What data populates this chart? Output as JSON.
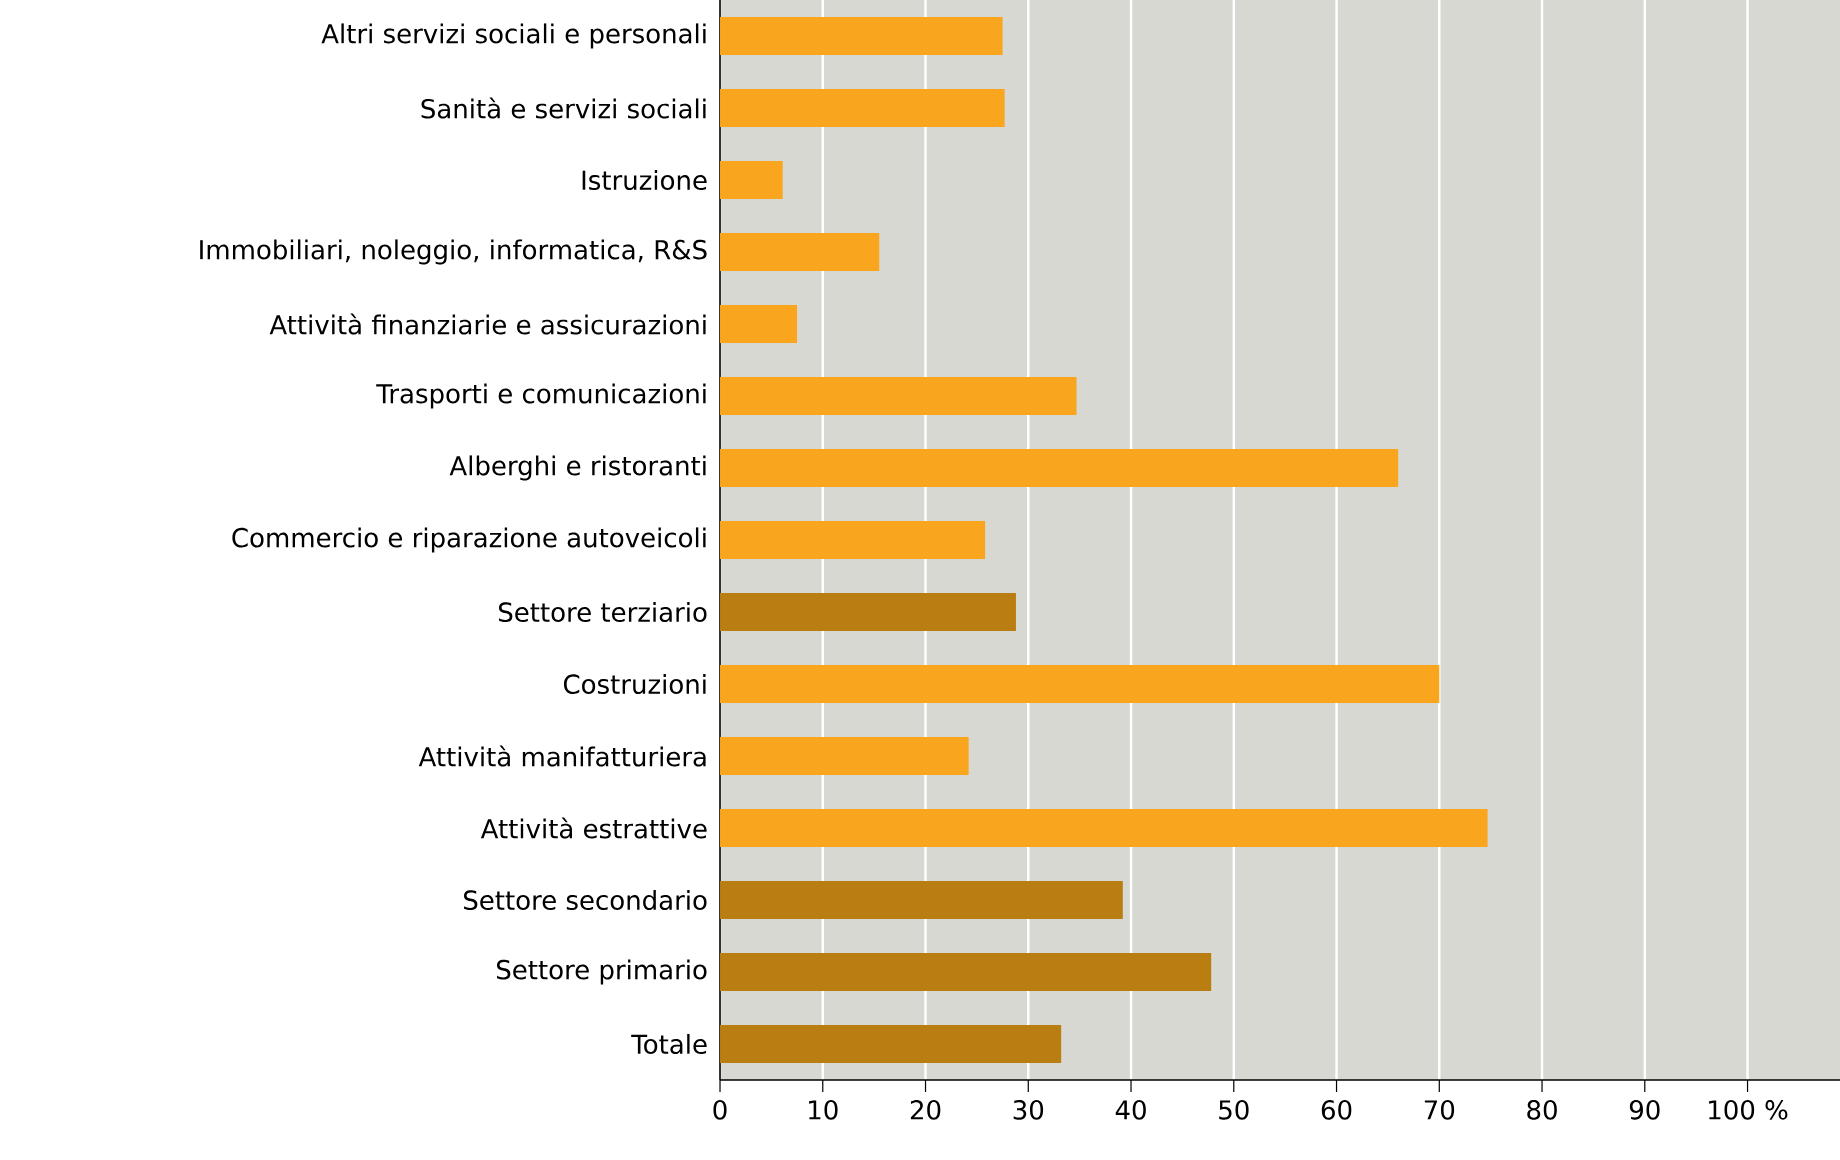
{
  "chart_data": {
    "type": "bar",
    "orientation": "horizontal",
    "categories": [
      "Altri servizi sociali e personali",
      "Sanità e servizi sociali",
      "Istruzione",
      "Immobiliari, noleggio, informatica, R&S",
      "Attività finanziarie e assicurazioni",
      "Trasporti e comunicazioni",
      "Alberghi e ristoranti",
      "Commercio e riparazione autoveicoli",
      "Settore terziario",
      "Costruzioni",
      "Attività manifatturiera",
      "Attività estrattive",
      "Settore secondario",
      "Settore primario",
      "Totale"
    ],
    "values": [
      27.5,
      27.7,
      6.1,
      15.5,
      7.5,
      34.7,
      66.0,
      25.8,
      28.8,
      70.0,
      24.2,
      74.7,
      39.2,
      47.8,
      33.2
    ],
    "colors": [
      "#f9a61e",
      "#f9a61e",
      "#f9a61e",
      "#f9a61e",
      "#f9a61e",
      "#f9a61e",
      "#f9a61e",
      "#f9a61e",
      "#b97d11",
      "#f9a61e",
      "#f9a61e",
      "#f9a61e",
      "#b97d11",
      "#b97d11",
      "#b97d11"
    ],
    "xlim": [
      0,
      109
    ],
    "xticks": [
      0,
      10,
      20,
      30,
      40,
      50,
      60,
      70,
      80,
      90,
      {
        "value": 100,
        "label": "100 %"
      }
    ],
    "grid": "x"
  }
}
